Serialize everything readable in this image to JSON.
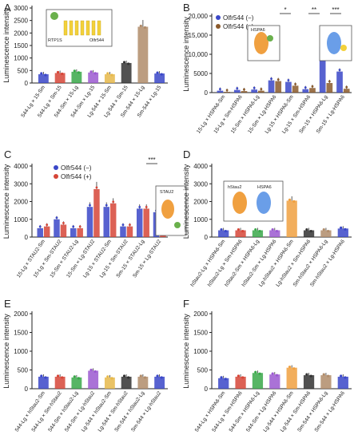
{
  "chart_data": [
    {
      "panel": "A",
      "type": "bar",
      "ylabel": "Luminescence intensity",
      "xlabel": "",
      "ylim": [
        0,
        3000
      ],
      "yticks": [
        0,
        500,
        1000,
        1500,
        2000,
        2500,
        3000
      ],
      "categories": [
        "544-Lg × 15-Sm",
        "544-Lg × Sm-15",
        "544-Sm × 15-Lg",
        "544-Sm × Lg-15",
        "Lg-544 × 15-Sm",
        "Lg-544 × Sm-15",
        "Sm-544 × 15-Lg",
        "Sm-544 × Lg-15"
      ],
      "values": [
        350,
        400,
        450,
        420,
        350,
        800,
        2250,
        380
      ],
      "colors": [
        "#3a47c8",
        "#d64537",
        "#3aa84a",
        "#9b59d0",
        "#e6b84a",
        "#333333",
        "#b08c6a",
        "#3a47c8"
      ],
      "significance": [],
      "inset": {
        "labels": [
          "RTP1S",
          "Olfr544"
        ]
      }
    },
    {
      "panel": "B",
      "type": "bar",
      "ylabel": "Luminescence intensity",
      "xlabel": "",
      "ylim": [
        0,
        20000
      ],
      "yticks": [
        0,
        5000,
        10000,
        15000,
        20000
      ],
      "categories": [
        "15-Lg × HSPA6-Sm",
        "15-Lg × Sm-HSPA6",
        "15-Sm × HSPA6-Lg",
        "15-Sm × Lg-HSPA6",
        "Lg-15 × HSPA6-Sm",
        "Lg-15 × Sm-HSPA6",
        "Sm-15 × HSPA6-Lg",
        "Sm-15 × Lg-HSPA6"
      ],
      "series": [
        {
          "name": "Olfr544 (−)",
          "color": "#3a47c8",
          "values": [
            500,
            700,
            800,
            3200,
            2800,
            900,
            12000,
            5500
          ]
        },
        {
          "name": "Olfr544 (+)",
          "color": "#8b5a2b",
          "values": [
            200,
            400,
            500,
            3000,
            1800,
            1200,
            2500,
            1000
          ]
        }
      ],
      "significance": [
        "*",
        "**",
        "***"
      ],
      "inset": {
        "labels": [
          "HSPA6",
          "C",
          "N"
        ]
      }
    },
    {
      "panel": "C",
      "type": "bar",
      "ylabel": "Luminescence intensity",
      "xlabel": "",
      "ylim": [
        0,
        4000
      ],
      "yticks": [
        0,
        1000,
        2000,
        3000,
        4000
      ],
      "categories": [
        "15-Lg × STAU2-Sm",
        "15-Lg × Sm-STAU2",
        "15-Sm × STAU2-Lg",
        "15-Sm × Lg-STAU2",
        "Lg-15 × STAU2-Sm",
        "Lg-15 × Sm-STAU2",
        "Sm-15 × STAU2-Lg",
        "Sm-15 × Lg-STAU2"
      ],
      "series": [
        {
          "name": "Olfr544 (−)",
          "color": "#3a47c8",
          "values": [
            500,
            1000,
            500,
            1700,
            1700,
            600,
            1600,
            1400
          ]
        },
        {
          "name": "Olfr544 (+)",
          "color": "#d64537",
          "values": [
            600,
            700,
            500,
            2700,
            1900,
            600,
            1600,
            700
          ]
        }
      ],
      "significance": [
        "***"
      ],
      "inset": {
        "labels": [
          "STAU2",
          "C",
          "N"
        ]
      }
    },
    {
      "panel": "D",
      "type": "bar",
      "ylabel": "Luminescence intensity",
      "xlabel": "",
      "ylim": [
        0,
        4000
      ],
      "yticks": [
        0,
        1000,
        2000,
        3000,
        4000
      ],
      "categories": [
        "hStau2-Lg × HSPA6-Sm",
        "hStau2-Lg × Sm-HSPA6",
        "hStau2-Sm × HSPA6-Lg",
        "hStau2-Sm × Lg-HSPA6",
        "Lg-hStau2 × HSPA6-Sm",
        "Lg-hStau2 × Sm-HSPA6",
        "Sm-hStau2 × HSPA6-Lg",
        "Sm-hStau2 × Lg-HSPA6"
      ],
      "values": [
        380,
        380,
        380,
        380,
        2050,
        380,
        380,
        480
      ],
      "colors": [
        "#3a47c8",
        "#d64537",
        "#3aa84a",
        "#9b59d0",
        "#f0a040",
        "#333333",
        "#b08c6a",
        "#3a47c8"
      ],
      "significance": [],
      "inset": {
        "labels": [
          "hStau2",
          "HSPA6",
          "C",
          "N",
          "N",
          "C"
        ]
      }
    },
    {
      "panel": "E",
      "type": "bar",
      "ylabel": "Luminescence intensity",
      "xlabel": "",
      "ylim": [
        0,
        2000
      ],
      "yticks": [
        0,
        500,
        1000,
        1500,
        2000
      ],
      "categories": [
        "544-Lg × hStau2-Sm",
        "544-Lg × Sm-hStau2",
        "544-Sm × hStau2-Lg",
        "544-Sm × Lg-hStau2",
        "Lg-544 × hStau2-Sm",
        "Lg-544 × Sm-hStau2",
        "Sm-544 × hStau2-Lg",
        "Sm-544 × Lg-hStau2"
      ],
      "values": [
        320,
        320,
        300,
        480,
        300,
        320,
        320,
        320
      ],
      "colors": [
        "#3a47c8",
        "#d64537",
        "#3aa84a",
        "#9b59d0",
        "#e6b84a",
        "#333333",
        "#b08c6a",
        "#3a47c8"
      ],
      "significance": []
    },
    {
      "panel": "F",
      "type": "bar",
      "ylabel": "Luminescence intensity",
      "xlabel": "",
      "ylim": [
        0,
        2000
      ],
      "yticks": [
        0,
        500,
        1000,
        1500,
        2000
      ],
      "categories": [
        "544-Lg × HSPA6-Sm",
        "544-Lg × Sm-HSPA6",
        "544-Sm × HSPA6-Lg",
        "544-Sm × Lg-HSPA6",
        "Lg-544 × HSPA6-Sm",
        "Lg-544 × Sm-HSPA6",
        "Sm-544 × HSPA6-Lg",
        "Sm-544 × Lg-HSPA6"
      ],
      "values": [
        280,
        320,
        420,
        380,
        560,
        360,
        360,
        320
      ],
      "colors": [
        "#3a47c8",
        "#d64537",
        "#3aa84a",
        "#9b59d0",
        "#f0a040",
        "#333333",
        "#b08c6a",
        "#3a47c8"
      ],
      "significance": []
    }
  ]
}
